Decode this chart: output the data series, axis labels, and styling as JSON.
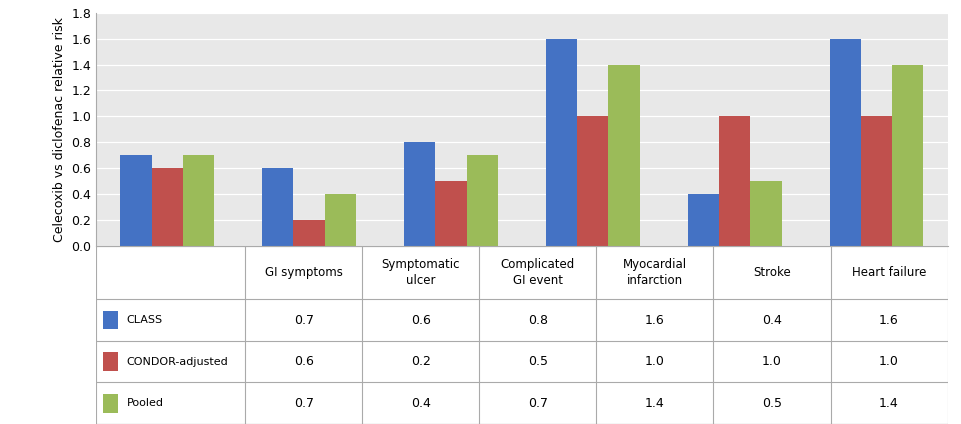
{
  "categories": [
    "GI symptoms",
    "Symptomatic\nulcer",
    "Complicated\nGI event",
    "Myocardial\ninfarction",
    "Stroke",
    "Heart failure"
  ],
  "series_names": [
    "CLASS",
    "CONDOR-adjusted",
    "Pooled"
  ],
  "series": {
    "CLASS": [
      0.7,
      0.6,
      0.8,
      1.6,
      0.4,
      1.6
    ],
    "CONDOR-adjusted": [
      0.6,
      0.2,
      0.5,
      1.0,
      1.0,
      1.0
    ],
    "Pooled": [
      0.7,
      0.4,
      0.7,
      1.4,
      0.5,
      1.4
    ]
  },
  "colors": {
    "CLASS": "#4472C4",
    "CONDOR-adjusted": "#C0504D",
    "Pooled": "#9BBB59"
  },
  "ylabel": "Celecoxib vs diclofenac relative risk",
  "ylim": [
    0.0,
    1.8
  ],
  "yticks": [
    0.0,
    0.2,
    0.4,
    0.6,
    0.8,
    1.0,
    1.2,
    1.4,
    1.6,
    1.8
  ],
  "table_rows": {
    "CLASS": [
      "0.7",
      "0.6",
      "0.8",
      "1.6",
      "0.4",
      "1.6"
    ],
    "CONDOR-adjusted": [
      "0.6",
      "0.2",
      "0.5",
      "1.0",
      "1.0",
      "1.0"
    ],
    "Pooled": [
      "0.7",
      "0.4",
      "0.7",
      "1.4",
      "0.5",
      "1.4"
    ]
  },
  "bar_width": 0.22,
  "plot_bg": "#E8E8E8",
  "fig_bg": "#FFFFFF",
  "grid_color": "#FFFFFF",
  "border_color": "#AAAAAA"
}
